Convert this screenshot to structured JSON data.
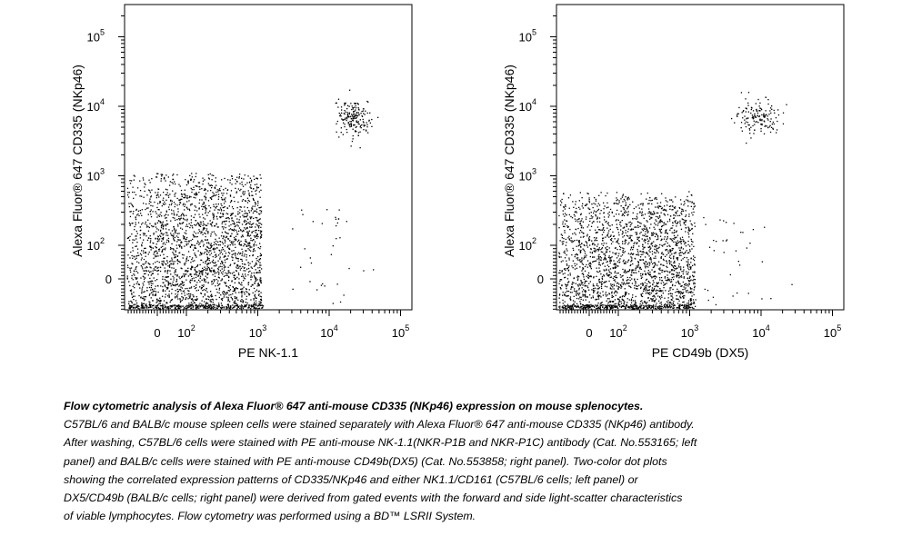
{
  "chart_data": [
    {
      "type": "scatter",
      "title": "",
      "xlabel": "PE NK-1.1",
      "ylabel": "Alexa Fluor® 647 CD335 (NKp46)",
      "x_scale": "biexponential",
      "y_scale": "biexponential",
      "xlim": [
        -150,
        250000
      ],
      "ylim": [
        -150,
        250000
      ],
      "x_ticks": [
        {
          "value": 0,
          "label": "0"
        },
        {
          "value": 100,
          "base": "10",
          "exp": "2"
        },
        {
          "value": 1000,
          "base": "10",
          "exp": "3"
        },
        {
          "value": 10000,
          "base": "10",
          "exp": "4"
        },
        {
          "value": 100000,
          "base": "10",
          "exp": "5"
        }
      ],
      "y_ticks": [
        {
          "value": 0,
          "label": "0"
        },
        {
          "value": 100,
          "base": "10",
          "exp": "2"
        },
        {
          "value": 1000,
          "base": "10",
          "exp": "3"
        },
        {
          "value": 10000,
          "base": "10",
          "exp": "4"
        },
        {
          "value": 100000,
          "base": "10",
          "exp": "5"
        }
      ],
      "grid": false,
      "populations": [
        {
          "name": "",
          "x_center": 30,
          "y_center": 60,
          "approx_events": 2400
        },
        {
          "name": "",
          "x_center": 22000,
          "y_center": 7000,
          "approx_events": 180
        },
        {
          "name": "",
          "x_center": 9000,
          "y_center": 150,
          "approx_events": 35
        }
      ]
    },
    {
      "type": "scatter",
      "title": "",
      "xlabel": "PE CD49b (DX5)",
      "ylabel": "Alexa Fluor® 647 CD335 (NKp46)",
      "x_scale": "biexponential",
      "y_scale": "biexponential",
      "xlim": [
        -150,
        250000
      ],
      "ylim": [
        -150,
        250000
      ],
      "x_ticks": [
        {
          "value": 0,
          "label": "0"
        },
        {
          "value": 100,
          "base": "10",
          "exp": "2"
        },
        {
          "value": 1000,
          "base": "10",
          "exp": "3"
        },
        {
          "value": 10000,
          "base": "10",
          "exp": "4"
        },
        {
          "value": 100000,
          "base": "10",
          "exp": "5"
        }
      ],
      "y_ticks": [
        {
          "value": 0,
          "label": "0"
        },
        {
          "value": 100,
          "base": "10",
          "exp": "2"
        },
        {
          "value": 1000,
          "base": "10",
          "exp": "3"
        },
        {
          "value": 10000,
          "base": "10",
          "exp": "4"
        },
        {
          "value": 100000,
          "base": "10",
          "exp": "5"
        }
      ],
      "grid": false,
      "populations": [
        {
          "name": "",
          "x_center": 120,
          "y_center": 60,
          "approx_events": 2200
        },
        {
          "name": "",
          "x_center": 9000,
          "y_center": 7000,
          "approx_events": 150
        },
        {
          "name": "",
          "x_center": 3000,
          "y_center": 150,
          "approx_events": 40
        }
      ]
    }
  ],
  "caption": {
    "title": "Flow cytometric analysis of Alexa Fluor® 647 anti-mouse CD335 (NKp46) expression on mouse splenocytes.",
    "lines": [
      "C57BL/6 and BALB/c mouse spleen cells were stained separately with Alexa Fluor® 647 anti-mouse CD335 (NKp46) antibody.",
      "After washing, C57BL/6 cells were stained with PE anti-mouse NK-1.1(NKR-P1B and NKR-P1C) antibody (Cat. No.553165; left",
      "panel) and BALB/c cells were stained with PE anti-mouse CD49b(DX5) (Cat. No.553858; right panel). Two-color dot plots",
      "showing the correlated expression patterns of CD335/NKp46 and either NK1.1/CD161 (C57BL/6 cells; left panel) or",
      "DX5/CD49b (BALB/c cells; right panel) were derived from gated events with the forward and side light-scatter characteristics",
      "of viable lymphocytes. Flow cytometry was performed using a BD™ LSRII System."
    ]
  }
}
